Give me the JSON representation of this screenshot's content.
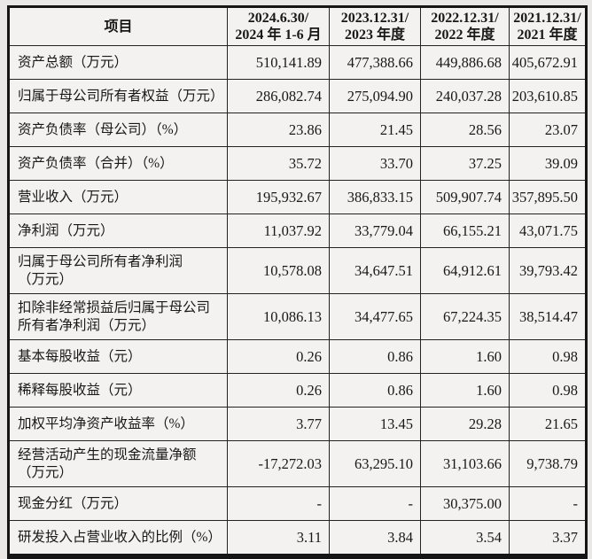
{
  "table": {
    "header": {
      "item_label": "项目",
      "periods": [
        {
          "line1": "2024.6.30/",
          "line2": "2024 年 1-6 月"
        },
        {
          "line1": "2023.12.31/",
          "line2": "2023 年度"
        },
        {
          "line1": "2022.12.31/",
          "line2": "2022 年度"
        },
        {
          "line1": "2021.12.31/",
          "line2": "2021 年度"
        }
      ]
    },
    "rows": [
      {
        "label": "资产总额（万元）",
        "values": [
          "510,141.89",
          "477,388.66",
          "449,886.68",
          "405,672.91"
        ]
      },
      {
        "label": "归属于母公司所有者权益（万元）",
        "values": [
          "286,082.74",
          "275,094.90",
          "240,037.28",
          "203,610.85"
        ]
      },
      {
        "label": "资产负债率（母公司）（%）",
        "values": [
          "23.86",
          "21.45",
          "28.56",
          "23.07"
        ]
      },
      {
        "label": "资产负债率（合并）（%）",
        "values": [
          "35.72",
          "33.70",
          "37.25",
          "39.09"
        ]
      },
      {
        "label": "营业收入（万元）",
        "values": [
          "195,932.67",
          "386,833.15",
          "509,907.74",
          "357,895.50"
        ]
      },
      {
        "label": "净利润（万元）",
        "values": [
          "11,037.92",
          "33,779.04",
          "66,155.21",
          "43,071.75"
        ]
      },
      {
        "label": "归属于母公司所有者净利润\n（万元）",
        "values": [
          "10,578.08",
          "34,647.51",
          "64,912.61",
          "39,793.42"
        ]
      },
      {
        "label": "扣除非经常损益后归属于母公司\n所有者净利润（万元）",
        "values": [
          "10,086.13",
          "34,477.65",
          "67,224.35",
          "38,514.47"
        ]
      },
      {
        "label": "基本每股收益（元）",
        "values": [
          "0.26",
          "0.86",
          "1.60",
          "0.98"
        ]
      },
      {
        "label": "稀释每股收益（元）",
        "values": [
          "0.26",
          "0.86",
          "1.60",
          "0.98"
        ]
      },
      {
        "label": "加权平均净资产收益率（%）",
        "values": [
          "3.77",
          "13.45",
          "29.28",
          "21.65"
        ]
      },
      {
        "label": "经营活动产生的现金流量净额\n（万元）",
        "values": [
          "-17,272.03",
          "63,295.10",
          "31,103.66",
          "9,738.79"
        ]
      },
      {
        "label": "现金分红（万元）",
        "values": [
          "-",
          "-",
          "30,375.00",
          "-"
        ]
      },
      {
        "label": "研发投入占营业收入的比例（%）",
        "values": [
          "3.11",
          "3.84",
          "3.54",
          "3.37"
        ]
      }
    ]
  }
}
